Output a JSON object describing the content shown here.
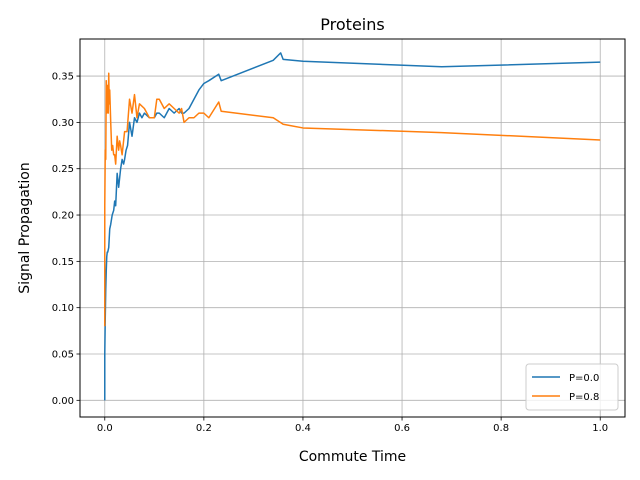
{
  "chart_data": {
    "type": "line",
    "title": "Proteins",
    "xlabel": "Commute Time",
    "ylabel": "Signal Propagation",
    "xlim": [
      -0.05,
      1.05
    ],
    "ylim": [
      -0.018,
      0.39
    ],
    "xticks": [
      0.0,
      0.2,
      0.4,
      0.6,
      0.8,
      1.0
    ],
    "xtick_labels": [
      "0.0",
      "0.2",
      "0.4",
      "0.6",
      "0.8",
      "1.0"
    ],
    "yticks": [
      0.0,
      0.05,
      0.1,
      0.15,
      0.2,
      0.25,
      0.3,
      0.35
    ],
    "ytick_labels": [
      "0.00",
      "0.05",
      "0.10",
      "0.15",
      "0.20",
      "0.25",
      "0.30",
      "0.35"
    ],
    "grid": true,
    "legend_position": "lower-right",
    "series": [
      {
        "name": "P=0.0",
        "color": "#1f77b4",
        "x": [
          0.0,
          0.0,
          0.001,
          0.002,
          0.003,
          0.004,
          0.005,
          0.006,
          0.008,
          0.01,
          0.012,
          0.015,
          0.018,
          0.02,
          0.022,
          0.025,
          0.028,
          0.03,
          0.032,
          0.035,
          0.038,
          0.04,
          0.043,
          0.046,
          0.05,
          0.055,
          0.06,
          0.065,
          0.07,
          0.075,
          0.08,
          0.09,
          0.1,
          0.105,
          0.11,
          0.12,
          0.13,
          0.14,
          0.15,
          0.155,
          0.16,
          0.17,
          0.18,
          0.19,
          0.2,
          0.21,
          0.23,
          0.235,
          0.34,
          0.355,
          0.36,
          0.4,
          0.68,
          1.0
        ],
        "y": [
          0.0,
          0.05,
          0.09,
          0.12,
          0.14,
          0.155,
          0.16,
          0.16,
          0.165,
          0.185,
          0.19,
          0.2,
          0.205,
          0.215,
          0.21,
          0.245,
          0.23,
          0.24,
          0.25,
          0.26,
          0.255,
          0.26,
          0.27,
          0.275,
          0.3,
          0.285,
          0.305,
          0.3,
          0.31,
          0.305,
          0.31,
          0.305,
          0.305,
          0.31,
          0.31,
          0.305,
          0.315,
          0.31,
          0.315,
          0.31,
          0.31,
          0.315,
          0.325,
          0.335,
          0.342,
          0.345,
          0.352,
          0.345,
          0.367,
          0.375,
          0.368,
          0.366,
          0.36,
          0.365
        ]
      },
      {
        "name": "P=0.8",
        "color": "#ff7f0e",
        "x": [
          0.0,
          0.0,
          0.001,
          0.002,
          0.003,
          0.004,
          0.005,
          0.006,
          0.007,
          0.008,
          0.009,
          0.01,
          0.012,
          0.014,
          0.016,
          0.018,
          0.02,
          0.022,
          0.025,
          0.028,
          0.03,
          0.032,
          0.035,
          0.04,
          0.045,
          0.05,
          0.055,
          0.06,
          0.065,
          0.07,
          0.08,
          0.09,
          0.1,
          0.105,
          0.11,
          0.12,
          0.13,
          0.14,
          0.15,
          0.155,
          0.16,
          0.17,
          0.18,
          0.19,
          0.2,
          0.21,
          0.23,
          0.235,
          0.34,
          0.36,
          0.4,
          0.68,
          1.0
        ],
        "y": [
          0.08,
          0.21,
          0.27,
          0.26,
          0.345,
          0.31,
          0.32,
          0.34,
          0.31,
          0.353,
          0.32,
          0.335,
          0.3,
          0.27,
          0.275,
          0.265,
          0.265,
          0.255,
          0.285,
          0.27,
          0.28,
          0.275,
          0.265,
          0.29,
          0.29,
          0.325,
          0.31,
          0.33,
          0.305,
          0.32,
          0.315,
          0.305,
          0.305,
          0.325,
          0.325,
          0.315,
          0.32,
          0.315,
          0.31,
          0.315,
          0.3,
          0.305,
          0.305,
          0.31,
          0.31,
          0.305,
          0.322,
          0.312,
          0.305,
          0.298,
          0.294,
          0.289,
          0.281
        ]
      }
    ]
  }
}
